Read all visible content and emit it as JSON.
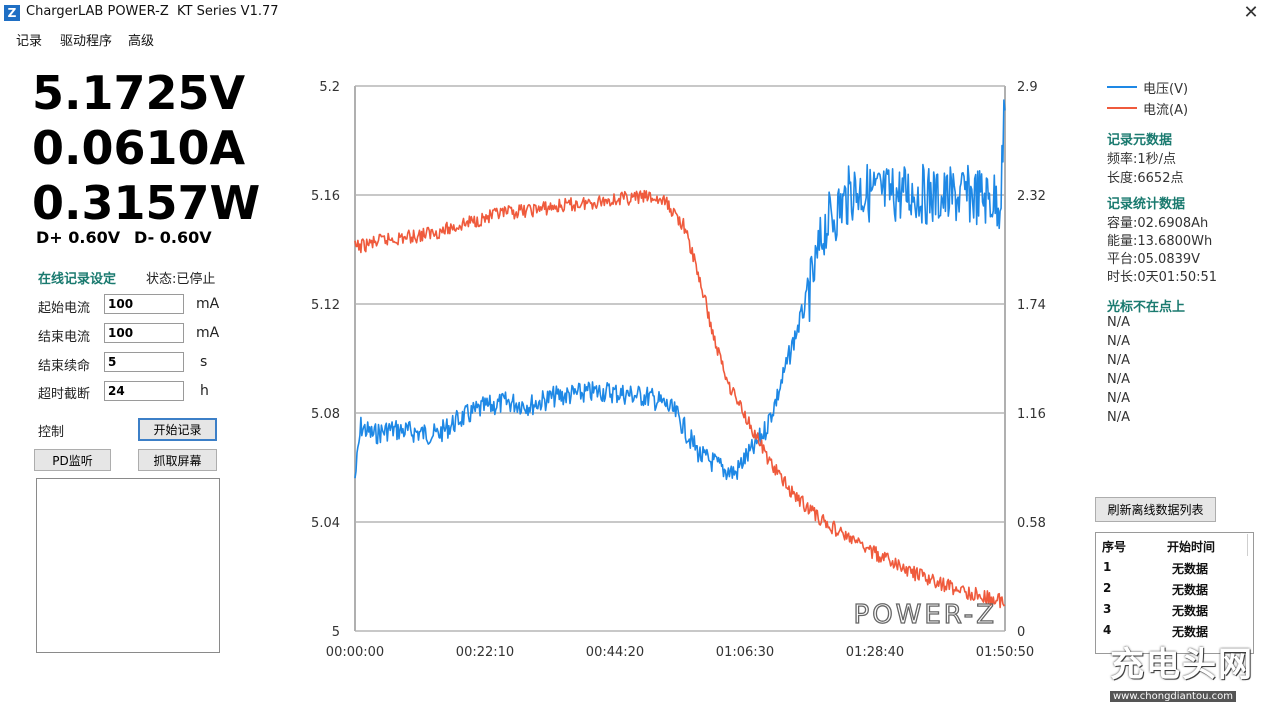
{
  "window": {
    "title": "ChargerLAB POWER-Z  KT Series V1.77",
    "icon_glyph": "Z",
    "close_glyph": "✕"
  },
  "menu": [
    "记录",
    "驱动程序",
    "高级"
  ],
  "readings": {
    "voltage": "5.1725V",
    "current": "0.0610A",
    "power": "0.3157W",
    "dplus": "D+ 0.60V",
    "dminus": "D- 0.60V"
  },
  "online_record": {
    "title": "在线记录设定",
    "status": "状态:已停止",
    "fields": [
      {
        "label": "起始电流",
        "value": "100",
        "unit": "mA"
      },
      {
        "label": "结束电流",
        "value": "100",
        "unit": "mA"
      },
      {
        "label": "结束续命",
        "value": "5",
        "unit": "s"
      },
      {
        "label": "超时截断",
        "value": "24",
        "unit": "h"
      }
    ]
  },
  "control": {
    "label": "控制",
    "start_button": "开始记录",
    "pd_button": "PD监听",
    "capture_button": "抓取屏幕"
  },
  "legend": [
    {
      "name": "电压(V)",
      "color": "#1e88e5"
    },
    {
      "name": "电流(A)",
      "color": "#ef5a3c"
    }
  ],
  "meta": {
    "title": "记录元数据",
    "freq": "频率:1秒/点",
    "length": "长度:6652点"
  },
  "stats": {
    "title": "记录统计数据",
    "capacity": "容量:02.6908Ah",
    "energy": "能量:13.6800Wh",
    "platform": "平台:05.0839V",
    "duration": "时长:0天01:50:51"
  },
  "cursor": {
    "title": "光标不在点上",
    "values": [
      "N/A",
      "N/A",
      "N/A",
      "N/A",
      "N/A",
      "N/A"
    ]
  },
  "refresh_button": "刷新离线数据列表",
  "offline_table": {
    "headers": [
      "序号",
      "开始时间"
    ],
    "rows": [
      [
        "1",
        "无数据"
      ],
      [
        "2",
        "无数据"
      ],
      [
        "3",
        "无数据"
      ],
      [
        "4",
        "无数据"
      ]
    ]
  },
  "chart_watermark": "POWER-Z",
  "site_watermark": {
    "main": "充电头网",
    "url": "www.chongdiantou.com"
  },
  "chart_data": {
    "type": "line",
    "x_ticks": [
      "00:00:00",
      "00:22:10",
      "00:44:20",
      "01:06:30",
      "01:28:40",
      "01:50:50"
    ],
    "x_range_minutes": [
      0,
      110.83
    ],
    "y_left": {
      "ticks": [
        "5.2",
        "5.16",
        "5.12",
        "5.08",
        "5.04",
        "5"
      ],
      "range": [
        5.0,
        5.2
      ]
    },
    "y_right": {
      "ticks": [
        "2.9",
        "2.32",
        "1.74",
        "1.16",
        "0.58",
        "0"
      ],
      "range": [
        0,
        2.9
      ]
    },
    "grid": true,
    "series": [
      {
        "name": "电压(V)",
        "color": "#1e88e5",
        "axis": "left",
        "x": [
          0,
          1,
          3,
          6,
          10,
          14,
          18,
          22,
          26,
          30,
          34,
          38,
          42,
          46,
          50,
          53,
          55,
          57,
          59,
          61,
          63,
          65,
          66,
          68,
          70,
          72,
          75,
          78,
          80,
          85,
          90,
          95,
          100,
          105,
          110,
          110.8
        ],
        "y": [
          5.056,
          5.075,
          5.072,
          5.074,
          5.073,
          5.072,
          5.078,
          5.082,
          5.084,
          5.083,
          5.086,
          5.087,
          5.088,
          5.087,
          5.086,
          5.083,
          5.079,
          5.071,
          5.064,
          5.062,
          5.059,
          5.058,
          5.062,
          5.067,
          5.074,
          5.086,
          5.108,
          5.128,
          5.148,
          5.162,
          5.16,
          5.161,
          5.159,
          5.16,
          5.158,
          5.191
        ]
      },
      {
        "name": "电流(A)",
        "color": "#ef5a3c",
        "axis": "right",
        "x": [
          0,
          5,
          10,
          15,
          20,
          25,
          30,
          35,
          40,
          45,
          50,
          53,
          56,
          58,
          60,
          61,
          62,
          63,
          64,
          66,
          68,
          70,
          72,
          75,
          80,
          85,
          90,
          95,
          100,
          105,
          110,
          110.8
        ],
        "y": [
          2.04,
          2.08,
          2.1,
          2.13,
          2.18,
          2.22,
          2.24,
          2.26,
          2.28,
          2.3,
          2.31,
          2.28,
          2.16,
          1.96,
          1.72,
          1.58,
          1.48,
          1.38,
          1.3,
          1.18,
          1.06,
          0.94,
          0.84,
          0.72,
          0.58,
          0.48,
          0.39,
          0.31,
          0.25,
          0.2,
          0.16,
          0.14
        ]
      }
    ]
  }
}
